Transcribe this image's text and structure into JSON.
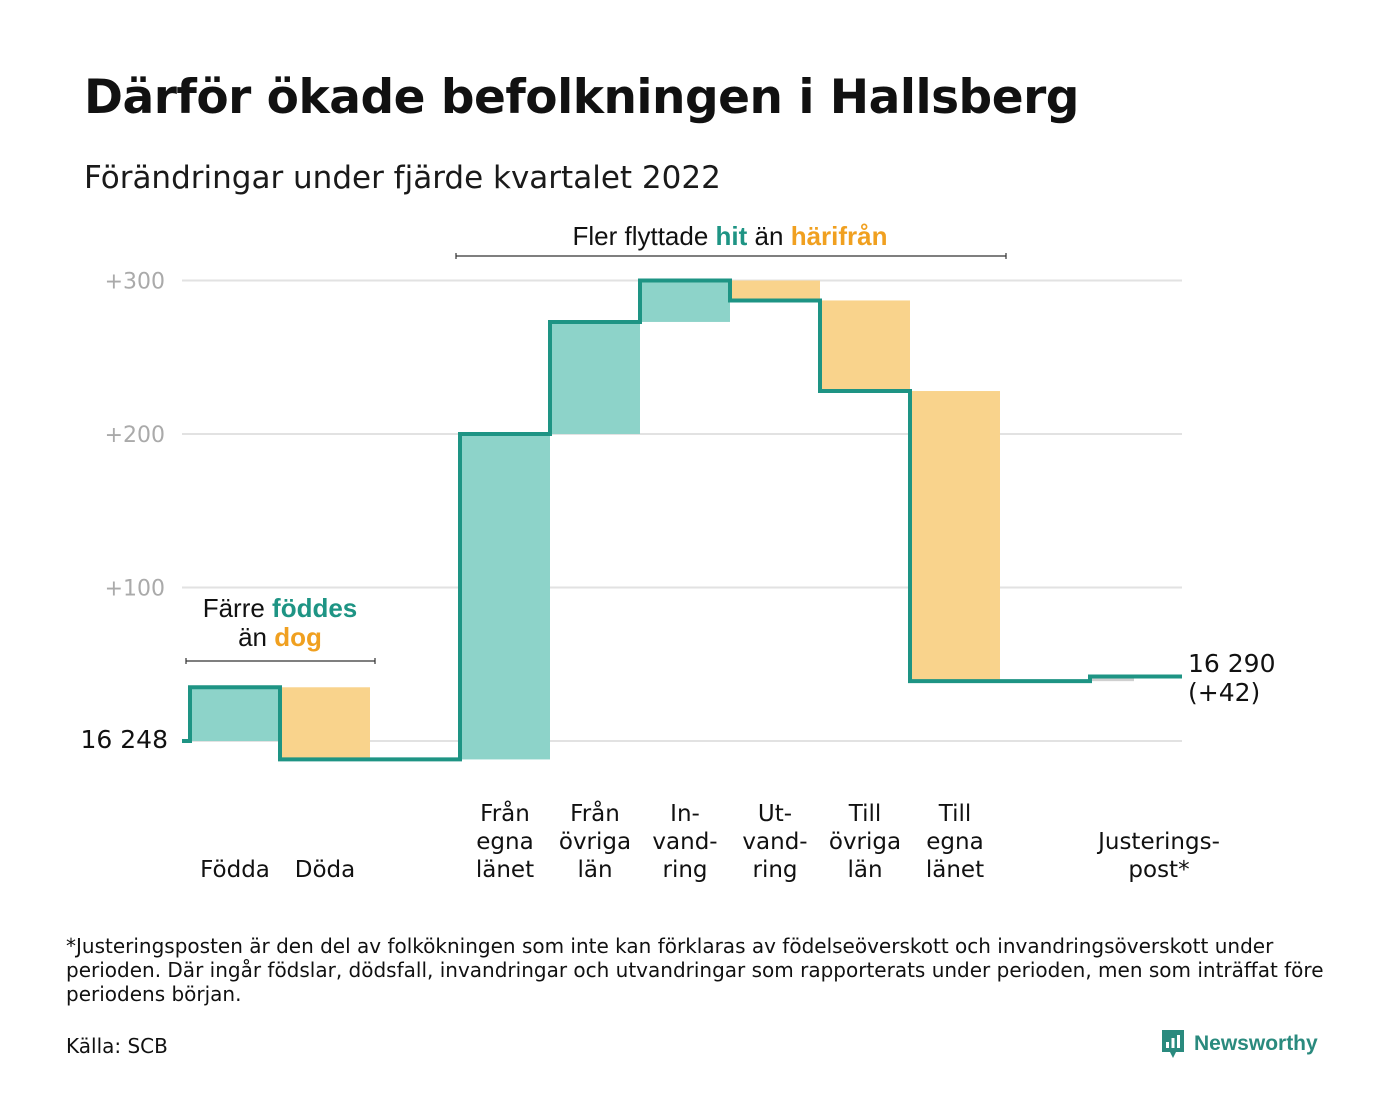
{
  "title": "Därför ökade befolkningen i Hallsberg",
  "subtitle": "Förändringar under fjärde kvartalet 2022",
  "colors": {
    "increase": "#8dd3c9",
    "decrease": "#f9d38c",
    "line": "#1e9484",
    "hit": "#1e9484",
    "harifran": "#f0a020",
    "grid": "#e2e2e2",
    "tick_text": "#aaaaaa"
  },
  "annotations": {
    "births_deaths": {
      "line1_a": "Färre ",
      "line1_b": "föddes",
      "line2_a": "än ",
      "line2_b": "dog"
    },
    "migration": {
      "part1": "Fler flyttade ",
      "part2": "hit",
      "part3": " än ",
      "part4": "härifrån"
    }
  },
  "chart_data": {
    "type": "waterfall",
    "start_label": "16 248",
    "end_label_line1": "16 290",
    "end_label_line2": "(+42)",
    "baseline": 16248,
    "end_value": 16290,
    "yticks": [
      {
        "value": 100,
        "label": "+100"
      },
      {
        "value": 200,
        "label": "+200"
      },
      {
        "value": 300,
        "label": "+300"
      }
    ],
    "ylim": [
      -20,
      300
    ],
    "steps": [
      {
        "label": [
          "",
          "",
          "Födda"
        ],
        "change": 35,
        "type": "increase"
      },
      {
        "label": [
          "",
          "",
          "Döda"
        ],
        "change": -47,
        "type": "decrease"
      },
      {
        "label": [
          "",
          "",
          ""
        ],
        "change": 0,
        "type": "none"
      },
      {
        "label": [
          "Från",
          "egna",
          "länet"
        ],
        "change": 212,
        "type": "increase"
      },
      {
        "label": [
          "Från",
          "övriga",
          "län"
        ],
        "change": 73,
        "type": "increase"
      },
      {
        "label": [
          "In-",
          "vand-",
          "ring"
        ],
        "change": 27,
        "type": "increase"
      },
      {
        "label": [
          "Ut-",
          "vand-",
          "ring"
        ],
        "change": -13,
        "type": "decrease"
      },
      {
        "label": [
          "Till",
          "övriga",
          "län"
        ],
        "change": -59,
        "type": "decrease"
      },
      {
        "label": [
          "Till",
          "egna",
          "länet"
        ],
        "change": -189,
        "type": "decrease"
      },
      {
        "label": [
          "",
          "",
          ""
        ],
        "change": 0,
        "type": "none"
      },
      {
        "label": [
          "Justerings-",
          "post*",
          ""
        ],
        "change": 3,
        "type": "adjust"
      }
    ]
  },
  "footnote": "*Justeringsposten är den del av folkökningen som inte kan förklaras av födelseöverskott och invandringsöverskott under perioden. Där ingår födslar, dödsfall, invandringar och utvandringar som rapporterats under perioden, men som inträffat före periodens början.",
  "source": "Källa: SCB",
  "brand": {
    "name": "Newsworthy",
    "icon": "newsworthy-logo-icon"
  }
}
